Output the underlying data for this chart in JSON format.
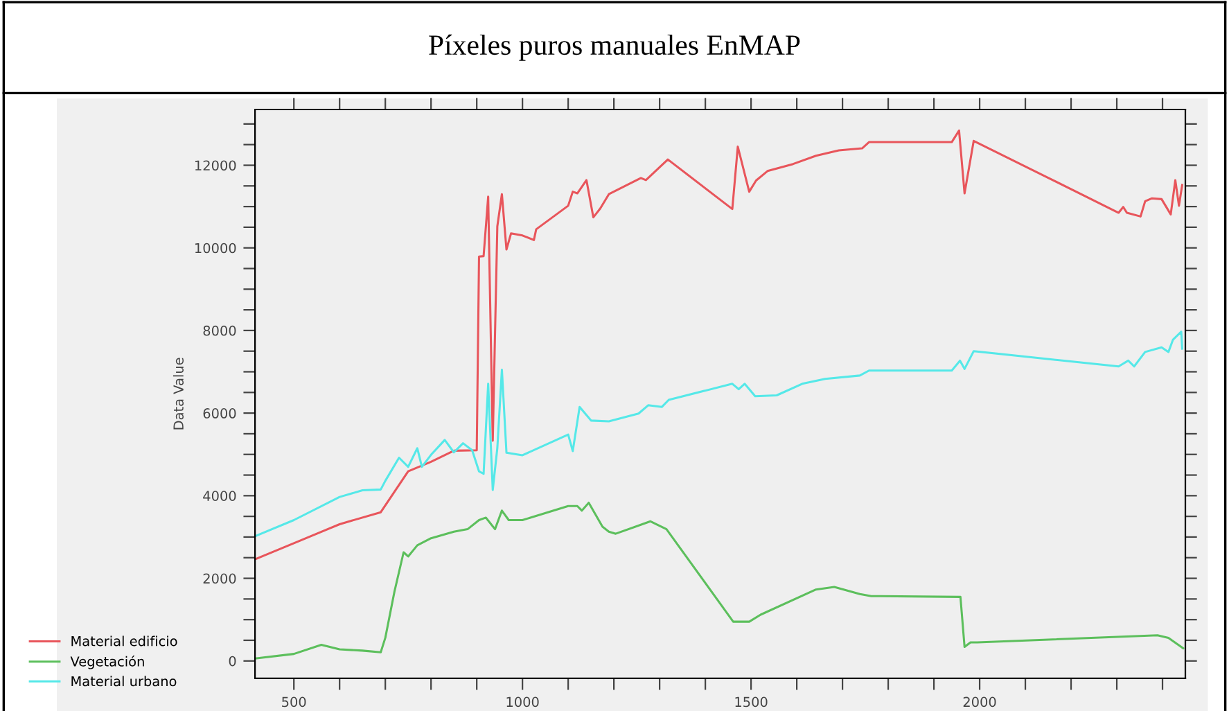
{
  "chart_data": {
    "type": "line",
    "title": "Píxeles puros manuales EnMAP",
    "ylabel": "Data Value",
    "xlim": [
      415,
      2450
    ],
    "ylim": [
      -420,
      13350
    ],
    "xticks": [
      500,
      {
        "value": 600,
        "label": null
      },
      {
        "value": 700,
        "label": null
      },
      {
        "value": 800,
        "label": null
      },
      {
        "value": 900,
        "label": null
      },
      1000,
      {
        "value": 1100,
        "label": null
      },
      {
        "value": 1200,
        "label": null
      },
      {
        "value": 1300,
        "label": null
      },
      {
        "value": 1400,
        "label": null
      },
      1500,
      {
        "value": 1600,
        "label": null
      },
      {
        "value": 1700,
        "label": null
      },
      {
        "value": 1800,
        "label": null
      },
      {
        "value": 1900,
        "label": null
      },
      2000,
      {
        "value": 2100,
        "label": null
      },
      {
        "value": 2200,
        "label": null
      },
      {
        "value": 2300,
        "label": null
      },
      {
        "value": 2400,
        "label": null
      }
    ],
    "yticks": [
      0,
      {
        "value": 500,
        "label": null
      },
      {
        "value": 1000,
        "label": null
      },
      {
        "value": 1500,
        "label": null
      },
      2000,
      {
        "value": 2500,
        "label": null
      },
      {
        "value": 3000,
        "label": null
      },
      {
        "value": 3500,
        "label": null
      },
      4000,
      {
        "value": 4500,
        "label": null
      },
      {
        "value": 5000,
        "label": null
      },
      {
        "value": 5500,
        "label": null
      },
      6000,
      {
        "value": 6500,
        "label": null
      },
      {
        "value": 7000,
        "label": null
      },
      {
        "value": 7500,
        "label": null
      },
      8000,
      {
        "value": 8500,
        "label": null
      },
      {
        "value": 9000,
        "label": null
      },
      {
        "value": 9500,
        "label": null
      },
      10000,
      {
        "value": 10500,
        "label": null
      },
      {
        "value": 11000,
        "label": null
      },
      {
        "value": 11500,
        "label": null
      },
      12000,
      {
        "value": 12500,
        "label": null
      },
      {
        "value": 13000,
        "label": null
      }
    ],
    "grid": false,
    "legend": "bottom left",
    "marker": "none",
    "line_style": "solid",
    "series": [
      {
        "name": "Material edificio",
        "color": "#e8555b",
        "x": [
          415,
          500,
          600,
          690,
          750,
          800,
          850,
          900,
          905,
          915,
          925,
          935,
          945,
          955,
          965,
          975,
          1000,
          1025,
          1030,
          1100,
          1110,
          1120,
          1140,
          1155,
          1170,
          1189,
          1259,
          1270,
          1318,
          1459,
          1471,
          1496,
          1511,
          1536,
          1592,
          1642,
          1692,
          1743,
          1758,
          1939,
          1955,
          1967,
          1987,
          2304,
          2314,
          2322,
          2352,
          2362,
          2377,
          2398,
          2418,
          2428,
          2436,
          2443
        ],
        "values": [
          2460,
          2850,
          3310,
          3600,
          4590,
          4820,
          5090,
          5100,
          9790,
          9800,
          11240,
          5330,
          10520,
          11300,
          9960,
          10350,
          10300,
          10190,
          10450,
          11020,
          11360,
          11320,
          11640,
          10740,
          10950,
          11300,
          11690,
          11640,
          12140,
          10940,
          12450,
          11360,
          11630,
          11860,
          12030,
          12230,
          12360,
          12410,
          12560,
          12560,
          12840,
          11320,
          12590,
          10850,
          10990,
          10850,
          10760,
          11130,
          11200,
          11180,
          10810,
          11640,
          11020,
          11520
        ]
      },
      {
        "name": "Vegetación",
        "color": "#5cbf5c",
        "x": [
          415,
          500,
          560,
          600,
          650,
          690,
          700,
          720,
          740,
          750,
          770,
          800,
          850,
          880,
          905,
          920,
          940,
          955,
          970,
          1000,
          1100,
          1120,
          1130,
          1145,
          1175,
          1189,
          1204,
          1280,
          1315,
          1461,
          1496,
          1521,
          1642,
          1682,
          1738,
          1763,
          1958,
          1967,
          1980,
          1995,
          2389,
          2413,
          2445
        ],
        "values": [
          60,
          170,
          390,
          280,
          250,
          210,
          560,
          1680,
          2630,
          2530,
          2800,
          2970,
          3130,
          3190,
          3410,
          3470,
          3190,
          3640,
          3410,
          3410,
          3750,
          3750,
          3640,
          3830,
          3250,
          3130,
          3080,
          3380,
          3190,
          950,
          950,
          1120,
          1730,
          1790,
          1620,
          1570,
          1550,
          340,
          450,
          450,
          620,
          560,
          310
        ]
      },
      {
        "name": "Material urbano",
        "color": "#55e8e8",
        "x": [
          415,
          500,
          600,
          650,
          690,
          700,
          730,
          750,
          770,
          780,
          800,
          830,
          850,
          870,
          890,
          905,
          915,
          925,
          935,
          945,
          955,
          965,
          1000,
          1100,
          1110,
          1125,
          1150,
          1189,
          1254,
          1275,
          1305,
          1320,
          1459,
          1473,
          1486,
          1509,
          1556,
          1612,
          1662,
          1738,
          1758,
          1939,
          1957,
          1967,
          1987,
          2304,
          2325,
          2338,
          2362,
          2398,
          2413,
          2423,
          2441,
          2443
        ],
        "values": [
          3020,
          3410,
          3970,
          4130,
          4150,
          4360,
          4920,
          4700,
          5150,
          4700,
          4990,
          5350,
          5050,
          5270,
          5100,
          4590,
          4530,
          6710,
          4140,
          5150,
          7050,
          5040,
          4980,
          5480,
          5080,
          6150,
          5820,
          5800,
          5990,
          6190,
          6150,
          6320,
          6710,
          6580,
          6710,
          6410,
          6430,
          6710,
          6830,
          6910,
          7030,
          7030,
          7270,
          7070,
          7500,
          7130,
          7270,
          7130,
          7480,
          7590,
          7480,
          7780,
          7970,
          7560
        ]
      }
    ]
  }
}
